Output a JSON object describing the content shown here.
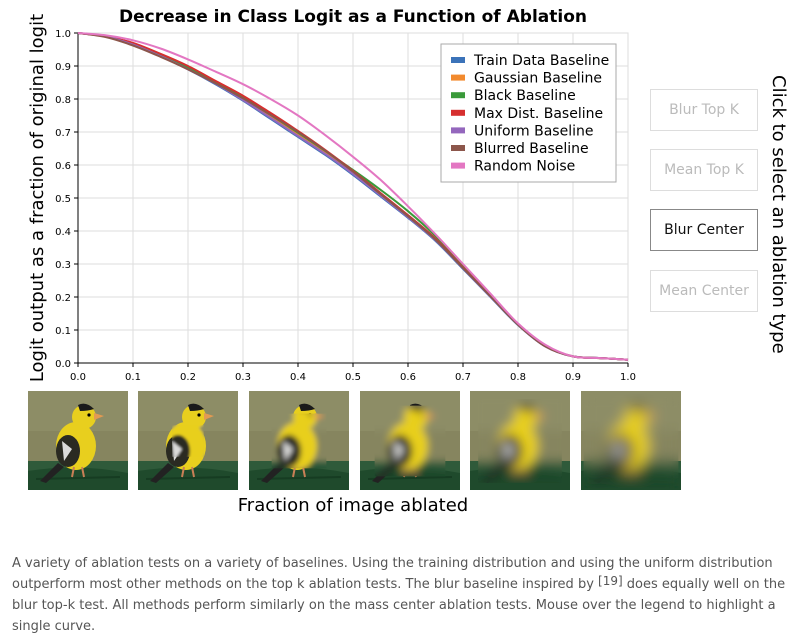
{
  "chart_data": {
    "type": "line",
    "title": "Decrease in Class Logit as a Function of Ablation",
    "xlabel": "Fraction of image ablated",
    "ylabel": "Logit output as a fraction of original logit",
    "xlim": [
      0,
      1
    ],
    "ylim": [
      0,
      1
    ],
    "xticks": [
      "0.0",
      "0.1",
      "0.2",
      "0.3",
      "0.4",
      "0.5",
      "0.6",
      "0.7",
      "0.8",
      "0.9",
      "1.0"
    ],
    "yticks": [
      "0.0",
      "0.1",
      "0.2",
      "0.3",
      "0.4",
      "0.5",
      "0.6",
      "0.7",
      "0.8",
      "0.9",
      "1.0"
    ],
    "grid": true,
    "legend_position": "top-right",
    "x": [
      0.0,
      0.05,
      0.1,
      0.15,
      0.2,
      0.25,
      0.3,
      0.35,
      0.4,
      0.45,
      0.5,
      0.55,
      0.6,
      0.65,
      0.7,
      0.75,
      0.8,
      0.85,
      0.9,
      0.95,
      1.0
    ],
    "series": [
      {
        "name": "Train Data Baseline",
        "color": "#3b73b9",
        "values": [
          1.0,
          0.99,
          0.965,
          0.93,
          0.89,
          0.845,
          0.795,
          0.74,
          0.685,
          0.63,
          0.57,
          0.505,
          0.44,
          0.37,
          0.285,
          0.2,
          0.115,
          0.05,
          0.02,
          0.015,
          0.01
        ]
      },
      {
        "name": "Gaussian Baseline",
        "color": "#f28a2e",
        "values": [
          1.0,
          0.99,
          0.968,
          0.934,
          0.895,
          0.85,
          0.802,
          0.748,
          0.694,
          0.638,
          0.578,
          0.513,
          0.447,
          0.376,
          0.29,
          0.203,
          0.117,
          0.051,
          0.02,
          0.015,
          0.01
        ]
      },
      {
        "name": "Black Baseline",
        "color": "#3a9a3a",
        "values": [
          1.0,
          0.99,
          0.968,
          0.935,
          0.896,
          0.852,
          0.805,
          0.752,
          0.698,
          0.642,
          0.585,
          0.525,
          0.46,
          0.385,
          0.295,
          0.205,
          0.118,
          0.052,
          0.02,
          0.015,
          0.01
        ]
      },
      {
        "name": "Max Dist. Baseline",
        "color": "#d62f2f",
        "values": [
          1.0,
          0.99,
          0.97,
          0.937,
          0.9,
          0.855,
          0.81,
          0.758,
          0.703,
          0.645,
          0.582,
          0.515,
          0.448,
          0.377,
          0.29,
          0.203,
          0.117,
          0.051,
          0.02,
          0.015,
          0.01
        ]
      },
      {
        "name": "Uniform Baseline",
        "color": "#9467bd",
        "values": [
          1.0,
          0.99,
          0.965,
          0.93,
          0.89,
          0.847,
          0.797,
          0.743,
          0.688,
          0.633,
          0.573,
          0.508,
          0.442,
          0.372,
          0.287,
          0.201,
          0.116,
          0.05,
          0.02,
          0.015,
          0.01
        ]
      },
      {
        "name": "Blurred Baseline",
        "color": "#8c564b",
        "values": [
          1.0,
          0.988,
          0.962,
          0.928,
          0.89,
          0.848,
          0.802,
          0.752,
          0.7,
          0.643,
          0.58,
          0.512,
          0.445,
          0.374,
          0.288,
          0.202,
          0.116,
          0.05,
          0.02,
          0.015,
          0.01
        ]
      },
      {
        "name": "Random Noise",
        "color": "#e377c2",
        "values": [
          1.0,
          0.993,
          0.978,
          0.953,
          0.92,
          0.883,
          0.845,
          0.8,
          0.75,
          0.69,
          0.625,
          0.555,
          0.475,
          0.39,
          0.3,
          0.21,
          0.12,
          0.055,
          0.02,
          0.015,
          0.01
        ]
      }
    ]
  },
  "ablation_buttons": {
    "title": "Click to select an ablation type",
    "items": [
      {
        "label": "Blur Top K",
        "selected": false
      },
      {
        "label": "Mean Top K",
        "selected": false
      },
      {
        "label": "Blur Center",
        "selected": true
      },
      {
        "label": "Mean Center",
        "selected": false
      }
    ]
  },
  "thumbnails": {
    "subject": "goldfinch on a green perch",
    "ablation_fractions": [
      0.0,
      0.1,
      0.3,
      0.5,
      0.7,
      0.9
    ]
  },
  "caption": {
    "part1": "A variety of ablation tests on a variety of baselines. Using the training distribution and using the uniform distribution outperform most other methods on the top k ablation tests. The blur baseline inspired by ",
    "ref": "[19]",
    "part2": " does equally well on the blur top-k test. All methods perform similarly on the mass center ablation tests. Mouse over the legend to highlight a single curve."
  }
}
